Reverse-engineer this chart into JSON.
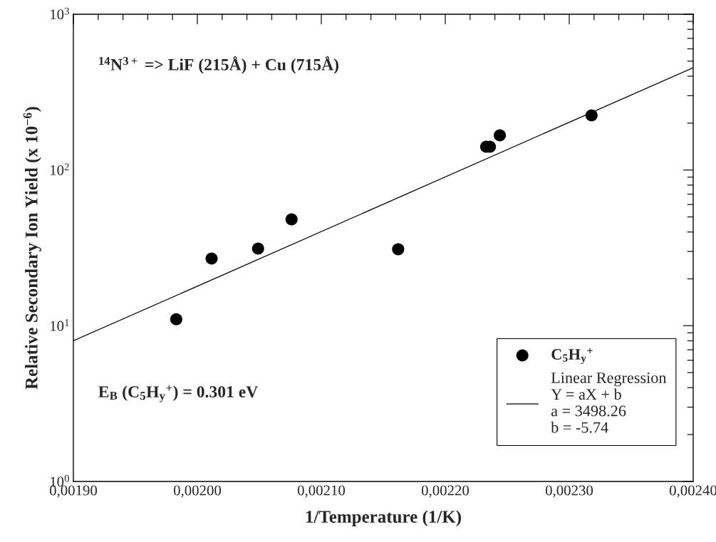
{
  "chart_data": {
    "type": "scatter",
    "xlabel": "1/Temperature (1/K)",
    "ylabel": "Relative Secondary Ion Yield (x 10$^{−6}$)",
    "annotations": [
      "$^{14}$N$^{3+}$ => LiF (215Å) + Cu (715Å)",
      "E$_{B}$ (C$_{5}$H$_{y}$$^{+}$) = 0.301 eV"
    ],
    "series": [
      {
        "name": "C$_{5}$H$_{y}$$^{+}$",
        "color": "#000000",
        "marker": "circle",
        "x": [
          0.001983,
          0.0020115,
          0.002049,
          0.002076,
          0.002162,
          0.002233,
          0.002236,
          0.002244,
          0.002318
        ],
        "values": [
          11.0,
          27.0,
          31.3,
          48.2,
          31.0,
          141,
          141,
          167,
          224
        ]
      },
      {
        "name": "Linear Regression\nY = aX + b\na = 3498.26\nb = -5.74",
        "type": "line",
        "color": "#000000",
        "line_style": "solid",
        "marker": "none",
        "x": [
          0.0019,
          0.0024
        ],
        "values": [
          8.0,
          454
        ]
      }
    ],
    "log": "y",
    "xlim": [
      0.0019,
      0.0024
    ],
    "xticks": [
      {
        "value": 0.0019,
        "label": "0,00190"
      },
      {
        "value": 0.002,
        "label": "0,00200"
      },
      {
        "value": 0.0021,
        "label": "0,00210"
      },
      {
        "value": 0.0022,
        "label": "0,00220"
      },
      {
        "value": 0.0023,
        "label": "0,00230"
      },
      {
        "value": 0.0024,
        "label": "0,00240"
      }
    ],
    "ylim": [
      1,
      1000
    ],
    "yticks": [
      {
        "value": 1,
        "label": "10$^{0}$"
      },
      {
        "value": 10,
        "label": "10$^{1}$"
      },
      {
        "value": 100,
        "label": "10$^{2}$"
      },
      {
        "value": 1000,
        "label": "10$^{3}$"
      }
    ],
    "grid": false,
    "legend": "bottom right"
  }
}
